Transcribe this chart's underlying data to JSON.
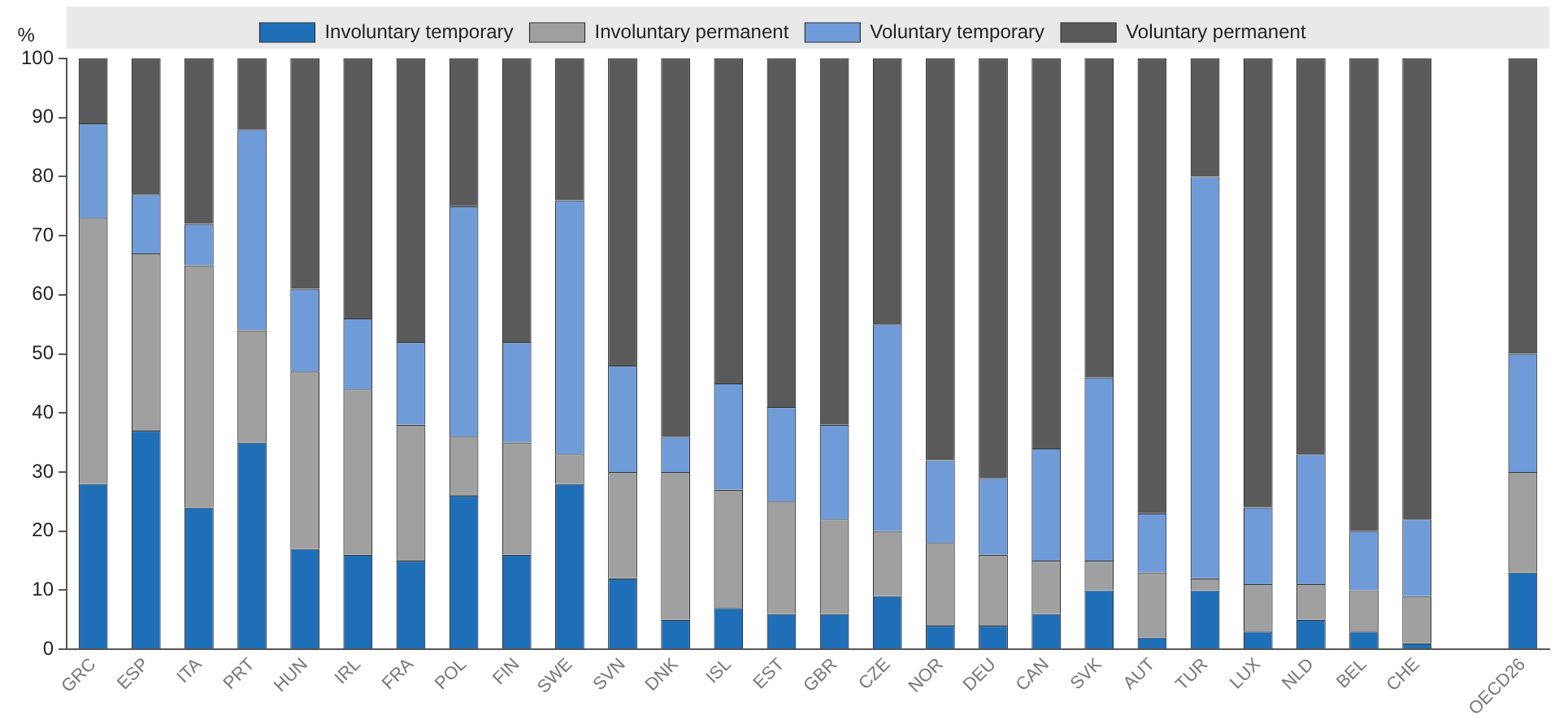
{
  "chart_data": {
    "type": "bar",
    "stacked": true,
    "ylabel": "%",
    "categories": [
      "GRC",
      "ESP",
      "ITA",
      "PRT",
      "HUN",
      "IRL",
      "FRA",
      "POL",
      "FIN",
      "SWE",
      "SVN",
      "DNK",
      "ISL",
      "EST",
      "GBR",
      "CZE",
      "NOR",
      "DEU",
      "CAN",
      "SVK",
      "AUT",
      "TUR",
      "LUX",
      "NLD",
      "BEL",
      "CHE",
      null,
      "OECD26"
    ],
    "series": [
      {
        "name": "Involuntary temporary",
        "color": "#1f6fb8",
        "values": [
          28,
          37,
          24,
          35,
          17,
          16,
          15,
          26,
          16,
          28,
          12,
          5,
          7,
          6,
          6,
          9,
          4,
          4,
          6,
          10,
          2,
          10,
          3,
          5,
          3,
          1,
          null,
          13
        ]
      },
      {
        "name": "Involuntary permanent",
        "color": "#a0a0a0",
        "values": [
          45,
          30,
          41,
          19,
          30,
          28,
          23,
          10,
          19,
          5,
          18,
          25,
          20,
          19,
          16,
          11,
          14,
          12,
          9,
          5,
          11,
          2,
          8,
          6,
          7,
          8,
          null,
          17
        ]
      },
      {
        "name": "Voluntary temporary",
        "color": "#6f9cd8",
        "values": [
          16,
          10,
          7,
          34,
          14,
          12,
          14,
          39,
          17,
          43,
          18,
          6,
          18,
          16,
          16,
          35,
          14,
          13,
          19,
          31,
          10,
          68,
          13,
          22,
          10,
          13,
          null,
          20
        ]
      },
      {
        "name": "Voluntary permanent",
        "color": "#5a5a5a",
        "values": [
          11,
          23,
          28,
          12,
          39,
          44,
          48,
          25,
          48,
          24,
          52,
          64,
          55,
          59,
          62,
          45,
          68,
          71,
          66,
          54,
          77,
          20,
          76,
          67,
          80,
          78,
          null,
          50
        ]
      }
    ],
    "ylim": [
      0,
      100
    ],
    "yticks": [
      0,
      10,
      20,
      30,
      40,
      50,
      60,
      70,
      80,
      90,
      100
    ],
    "grid": false,
    "legend": "top"
  }
}
